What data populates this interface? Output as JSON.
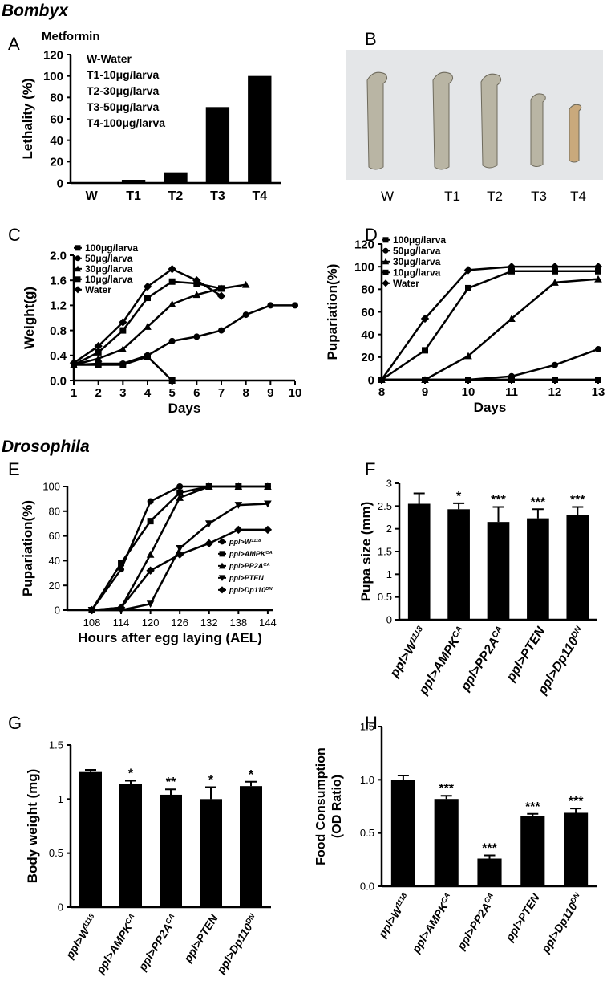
{
  "headings": [
    "Bombyx",
    "Drosophila"
  ],
  "photo": {
    "panel": "B",
    "labels": [
      "W",
      "T1",
      "T2",
      "T3",
      "T4"
    ]
  },
  "chart_data": [
    {
      "type": "bar",
      "panel": "A",
      "title": "Metformin",
      "ylabel": "Lethality (%)",
      "categories": [
        "W",
        "T1",
        "T2",
        "T3",
        "T4"
      ],
      "values": [
        0,
        3,
        10,
        71,
        100
      ],
      "color": "#000000",
      "ylim": [
        0,
        120
      ],
      "yticks": [
        0,
        20,
        40,
        60,
        80,
        100,
        120
      ],
      "notes": [
        "W-Water",
        "T1-10μg/larva",
        "T2-30μg/larva",
        "T3-50μg/larva",
        "T4-100μg/larva"
      ]
    },
    {
      "type": "line",
      "panel": "C",
      "xlabel": "Days",
      "ylabel": "Weight(g)",
      "x": [
        1,
        2,
        3,
        4,
        5,
        6,
        7,
        8,
        9,
        10
      ],
      "xlim": [
        1,
        10
      ],
      "xticks": [
        1,
        2,
        3,
        4,
        5,
        6,
        7,
        8,
        9,
        10
      ],
      "ylim": [
        0,
        2
      ],
      "yticks": [
        {
          "value": 0,
          "label": "0.0"
        },
        0.4,
        0.8,
        1.2,
        1.6,
        {
          "value": 2,
          "label": "2.0"
        }
      ],
      "color": "#000000",
      "series": [
        {
          "name": "100μg/larva",
          "marker": "square",
          "values": [
            0.25,
            0.25,
            0.25,
            0.38,
            0,
            null,
            null,
            null,
            null,
            null
          ]
        },
        {
          "name": "50μg/larva",
          "marker": "circle",
          "values": [
            0.25,
            0.27,
            0.27,
            0.4,
            0.63,
            0.7,
            0.8,
            1.05,
            1.2,
            1.2
          ]
        },
        {
          "name": "30μg/larva",
          "marker": "triangle",
          "values": [
            0.25,
            0.35,
            0.5,
            0.86,
            1.22,
            1.37,
            1.47,
            1.53,
            null,
            null
          ]
        },
        {
          "name": "10μg/larva",
          "marker": "square",
          "values": [
            0.25,
            0.45,
            0.8,
            1.32,
            1.58,
            1.55,
            1.47,
            null,
            null,
            null
          ]
        },
        {
          "name": "Water",
          "marker": "diamond",
          "values": [
            0.28,
            0.55,
            0.93,
            1.5,
            1.78,
            1.6,
            1.35,
            null,
            null,
            null
          ]
        }
      ]
    },
    {
      "type": "line",
      "panel": "D",
      "xlabel": "Days",
      "ylabel": "Pupariation(%)",
      "x": [
        8,
        9,
        10,
        11,
        12,
        13
      ],
      "xlim": [
        8,
        13
      ],
      "xticks": [
        8,
        9,
        10,
        11,
        12,
        13
      ],
      "ylim": [
        0,
        120
      ],
      "yticks": [
        0,
        20,
        40,
        60,
        80,
        100,
        120
      ],
      "color": "#000000",
      "series": [
        {
          "name": "100μg/larva",
          "marker": "square",
          "values": [
            0,
            0,
            0,
            0,
            0,
            0
          ]
        },
        {
          "name": "50μg/larva",
          "marker": "circle",
          "values": [
            0,
            0,
            0,
            3,
            13,
            27
          ]
        },
        {
          "name": "30μg/larva",
          "marker": "triangle",
          "values": [
            0,
            0,
            21,
            54,
            86,
            89
          ]
        },
        {
          "name": "10μg/larva",
          "marker": "square",
          "values": [
            0,
            26,
            81,
            96,
            96,
            96
          ]
        },
        {
          "name": "Water",
          "marker": "diamond",
          "values": [
            0,
            54,
            97,
            100,
            100,
            100
          ]
        }
      ]
    },
    {
      "type": "line",
      "panel": "E",
      "xlabel": "Hours after egg laying (AEL)",
      "ylabel": "Pupariation(%)",
      "x": [
        108,
        114,
        120,
        126,
        132,
        138,
        144
      ],
      "xlim": [
        103,
        145
      ],
      "xticks": [
        108,
        114,
        120,
        126,
        132,
        138,
        144
      ],
      "ylim": [
        0,
        100
      ],
      "yticks": [
        0,
        20,
        40,
        60,
        80,
        100
      ],
      "color": "#000000",
      "series": [
        {
          "name": "ppl>W",
          "sup": "1118",
          "marker": "circle",
          "values": [
            0,
            33,
            88,
            100,
            100,
            100,
            100
          ]
        },
        {
          "name": "ppl>AMPK",
          "sup": "CA",
          "marker": "square",
          "values": [
            0,
            38,
            72,
            95,
            100,
            100,
            100
          ]
        },
        {
          "name": "ppl>PP2A",
          "sup": "CA",
          "marker": "triangle",
          "values": [
            0,
            2,
            45,
            91,
            100,
            100,
            100
          ]
        },
        {
          "name": "ppl>PTEN",
          "marker": "triangle-down",
          "values": [
            0,
            0,
            5,
            50,
            70,
            85,
            86
          ]
        },
        {
          "name": "ppl>Dp110",
          "sup": "DN",
          "marker": "diamond",
          "values": [
            0,
            2,
            32,
            45,
            54,
            65,
            65
          ]
        }
      ]
    },
    {
      "type": "bar",
      "panel": "F",
      "ylabel": "Pupa size (mm)",
      "categories": [
        "ppl>W",
        "ppl>AMPK",
        "ppl>PP2A",
        "ppl>PTEN",
        "ppl>Dp110"
      ],
      "category_sups": [
        "1118",
        "CA",
        "CA",
        null,
        "DN"
      ],
      "values": [
        2.55,
        2.43,
        2.15,
        2.23,
        2.31
      ],
      "errors": [
        0.23,
        0.13,
        0.33,
        0.2,
        0.17
      ],
      "annotations": [
        null,
        "*",
        "***",
        "***",
        "***"
      ],
      "color": "#000000",
      "ylim": [
        0,
        3
      ],
      "yticks": [
        0,
        0.5,
        1,
        1.5,
        2,
        2.5,
        3
      ]
    },
    {
      "type": "bar",
      "panel": "G",
      "ylabel": "Body weight (mg)",
      "categories": [
        "ppl>W",
        "ppl>AMPK",
        "ppl>PP2A",
        "ppl>PTEN",
        "ppl>Dp110"
      ],
      "category_sups": [
        "1118",
        "CA",
        "CA",
        null,
        "DN"
      ],
      "values": [
        1.25,
        1.14,
        1.04,
        1.0,
        1.12
      ],
      "errors": [
        0.02,
        0.03,
        0.05,
        0.11,
        0.04
      ],
      "annotations": [
        null,
        "*",
        "**",
        "*",
        "*"
      ],
      "color": "#000000",
      "ylim": [
        0,
        1.5
      ],
      "yticks": [
        0,
        0.5,
        1,
        1.5
      ]
    },
    {
      "type": "bar",
      "panel": "H",
      "ylabel": [
        "Food Consumption",
        "(OD Ratio)"
      ],
      "categories": [
        "ppl>W",
        "ppl>AMPK",
        "ppl>PP2A",
        "ppl>PTEN",
        "ppl>Dp110"
      ],
      "category_sups": [
        "1118",
        "CA",
        "CA",
        null,
        "DN"
      ],
      "values": [
        1.0,
        0.82,
        0.26,
        0.66,
        0.69
      ],
      "errors": [
        0.04,
        0.03,
        0.03,
        0.02,
        0.04
      ],
      "annotations": [
        null,
        "***",
        "***",
        "***",
        "***"
      ],
      "color": "#000000",
      "ylim": [
        0,
        1.5
      ],
      "yticks": [
        {
          "value": 0,
          "label": "0.0"
        },
        0.5,
        {
          "value": 1,
          "label": "1.0"
        },
        1.5
      ]
    }
  ]
}
